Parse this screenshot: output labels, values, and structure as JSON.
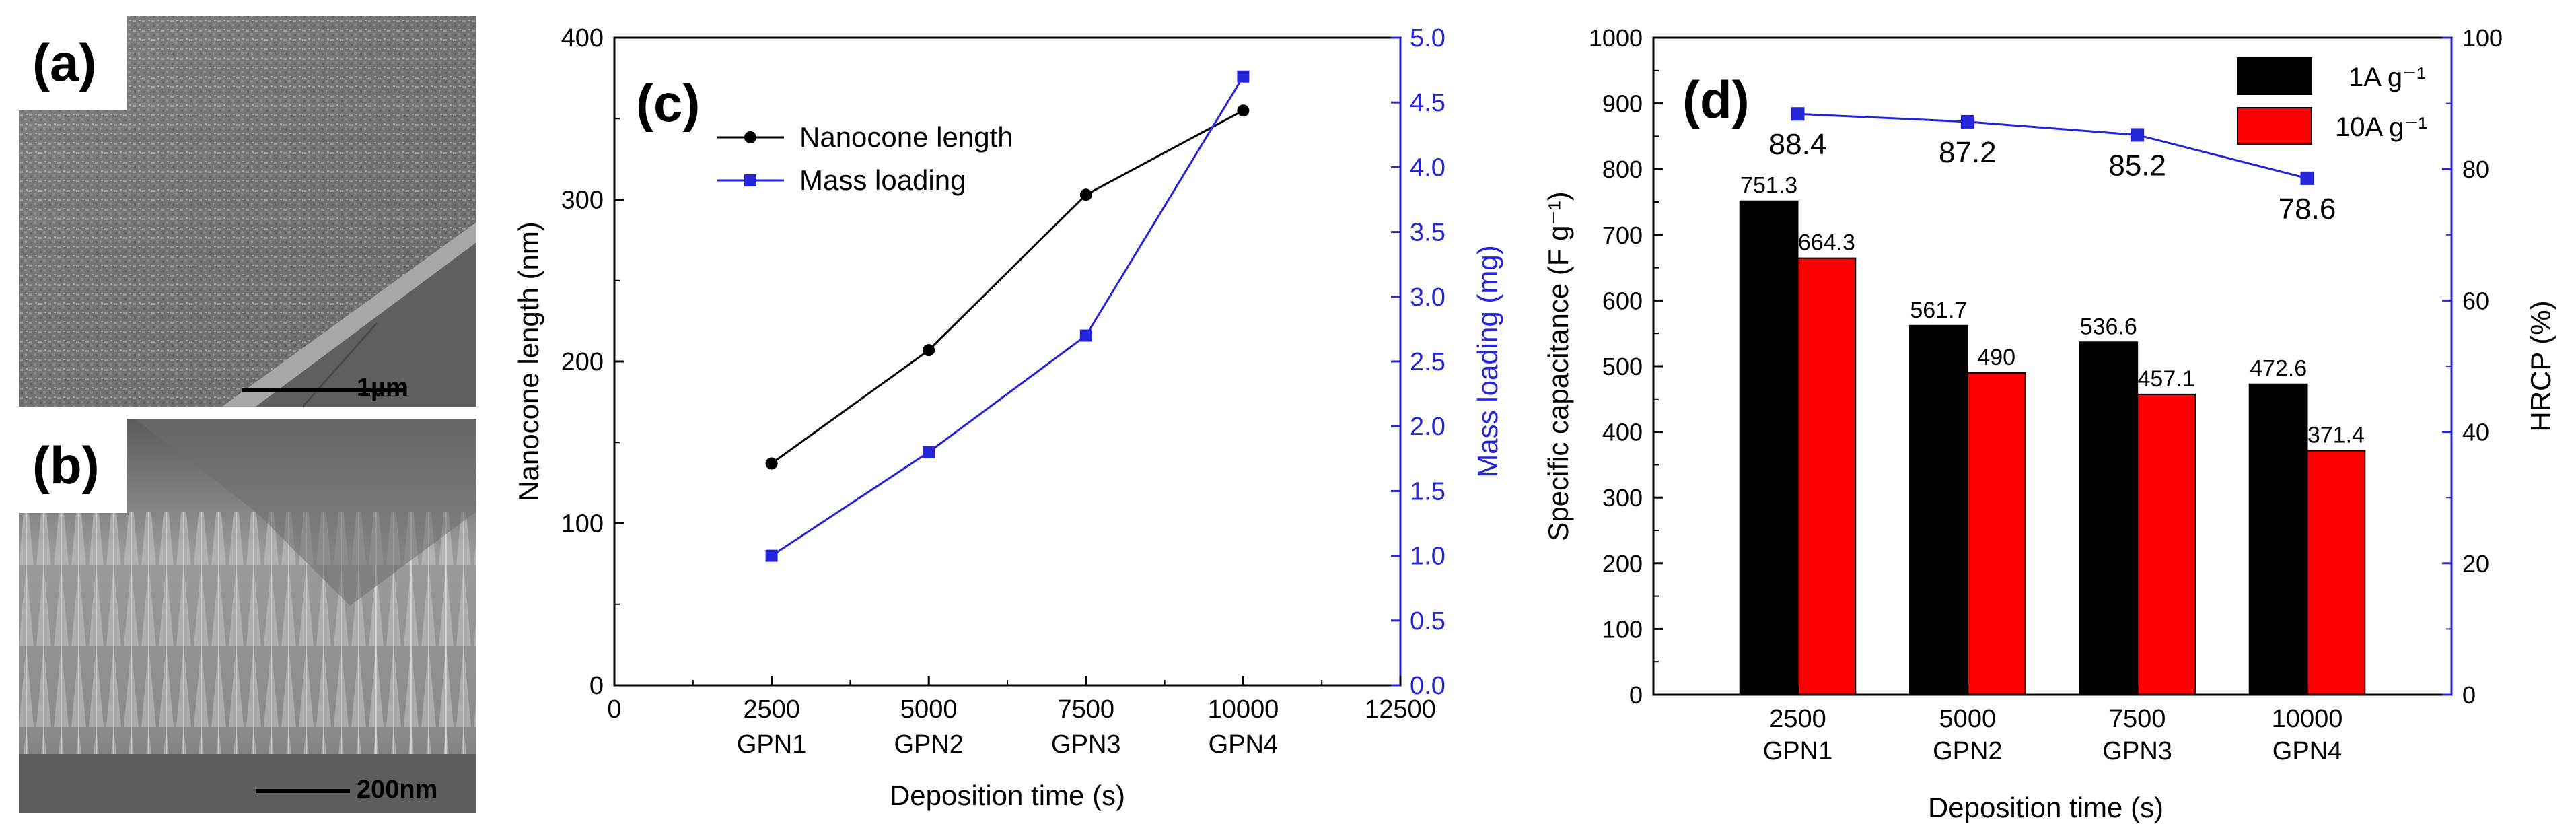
{
  "panels": {
    "a": {
      "label": "(a)",
      "scale_bar": "1µm"
    },
    "b": {
      "label": "(b)",
      "scale_bar": "200nm"
    },
    "c": {
      "label": "(c)"
    },
    "d": {
      "label": "(d)"
    }
  },
  "colors": {
    "black": "#000000",
    "blue": "#2424d8",
    "red": "#ff0000"
  },
  "chart_data": [
    {
      "id": "c",
      "type": "line",
      "xlabel": "Deposition time (s)",
      "ylabel": "Nanocone length (nm)",
      "y2label": "Mass loading (mg)",
      "xlim": [
        0,
        12500
      ],
      "ylim": [
        0,
        400
      ],
      "y2lim": [
        0,
        5.0
      ],
      "x_ticks": [
        "0",
        "2500",
        "5000",
        "7500",
        "10000",
        "12500"
      ],
      "x_sublabels": [
        "GPN1",
        "GPN2",
        "GPN3",
        "GPN4"
      ],
      "y_ticks": [
        "0",
        "100",
        "200",
        "300",
        "400"
      ],
      "y2_ticks": [
        "0.0",
        "0.5",
        "1.0",
        "1.5",
        "2.0",
        "2.5",
        "3.0",
        "3.5",
        "4.0",
        "4.5",
        "5.0"
      ],
      "legend_position": "top-left",
      "series": [
        {
          "name": "Nanocone length",
          "axis": "left",
          "marker": "circle",
          "x": [
            2500,
            5000,
            7500,
            10000
          ],
          "values": [
            137,
            207,
            303,
            355
          ]
        },
        {
          "name": "Mass loading",
          "axis": "right",
          "marker": "square",
          "x": [
            2500,
            5000,
            7500,
            10000
          ],
          "values": [
            1.0,
            1.8,
            2.7,
            4.7
          ]
        }
      ]
    },
    {
      "id": "d",
      "type": "bar",
      "xlabel": "Deposition time (s)",
      "ylabel": "Specific capacitance (F g⁻¹)",
      "y2label": "HRCP (%)",
      "categories": [
        "2500",
        "5000",
        "7500",
        "10000"
      ],
      "sublabels": [
        "GPN1",
        "GPN2",
        "GPN3",
        "GPN4"
      ],
      "ylim": [
        0,
        1000
      ],
      "y2lim": [
        0,
        100
      ],
      "y_ticks": [
        "0",
        "100",
        "200",
        "300",
        "400",
        "500",
        "600",
        "700",
        "800",
        "900",
        "1000"
      ],
      "y2_ticks": [
        "0",
        "20",
        "40",
        "60",
        "80",
        "100"
      ],
      "legend_position": "top-right",
      "series": [
        {
          "name": "1A g⁻¹",
          "values": [
            751.3,
            561.7,
            536.6,
            472.6
          ],
          "labels": [
            "751.3",
            "561.7",
            "536.6",
            "472.6"
          ]
        },
        {
          "name": "10A g⁻¹",
          "values": [
            664.3,
            490,
            457.1,
            371.4
          ],
          "labels": [
            "664.3",
            "490",
            "457.1",
            "371.4"
          ]
        }
      ],
      "line": {
        "name": "HRCP",
        "axis": "right",
        "marker": "square",
        "values": [
          88.4,
          87.2,
          85.2,
          78.6
        ],
        "labels": [
          "88.4",
          "87.2",
          "85.2",
          "78.6"
        ]
      }
    }
  ]
}
